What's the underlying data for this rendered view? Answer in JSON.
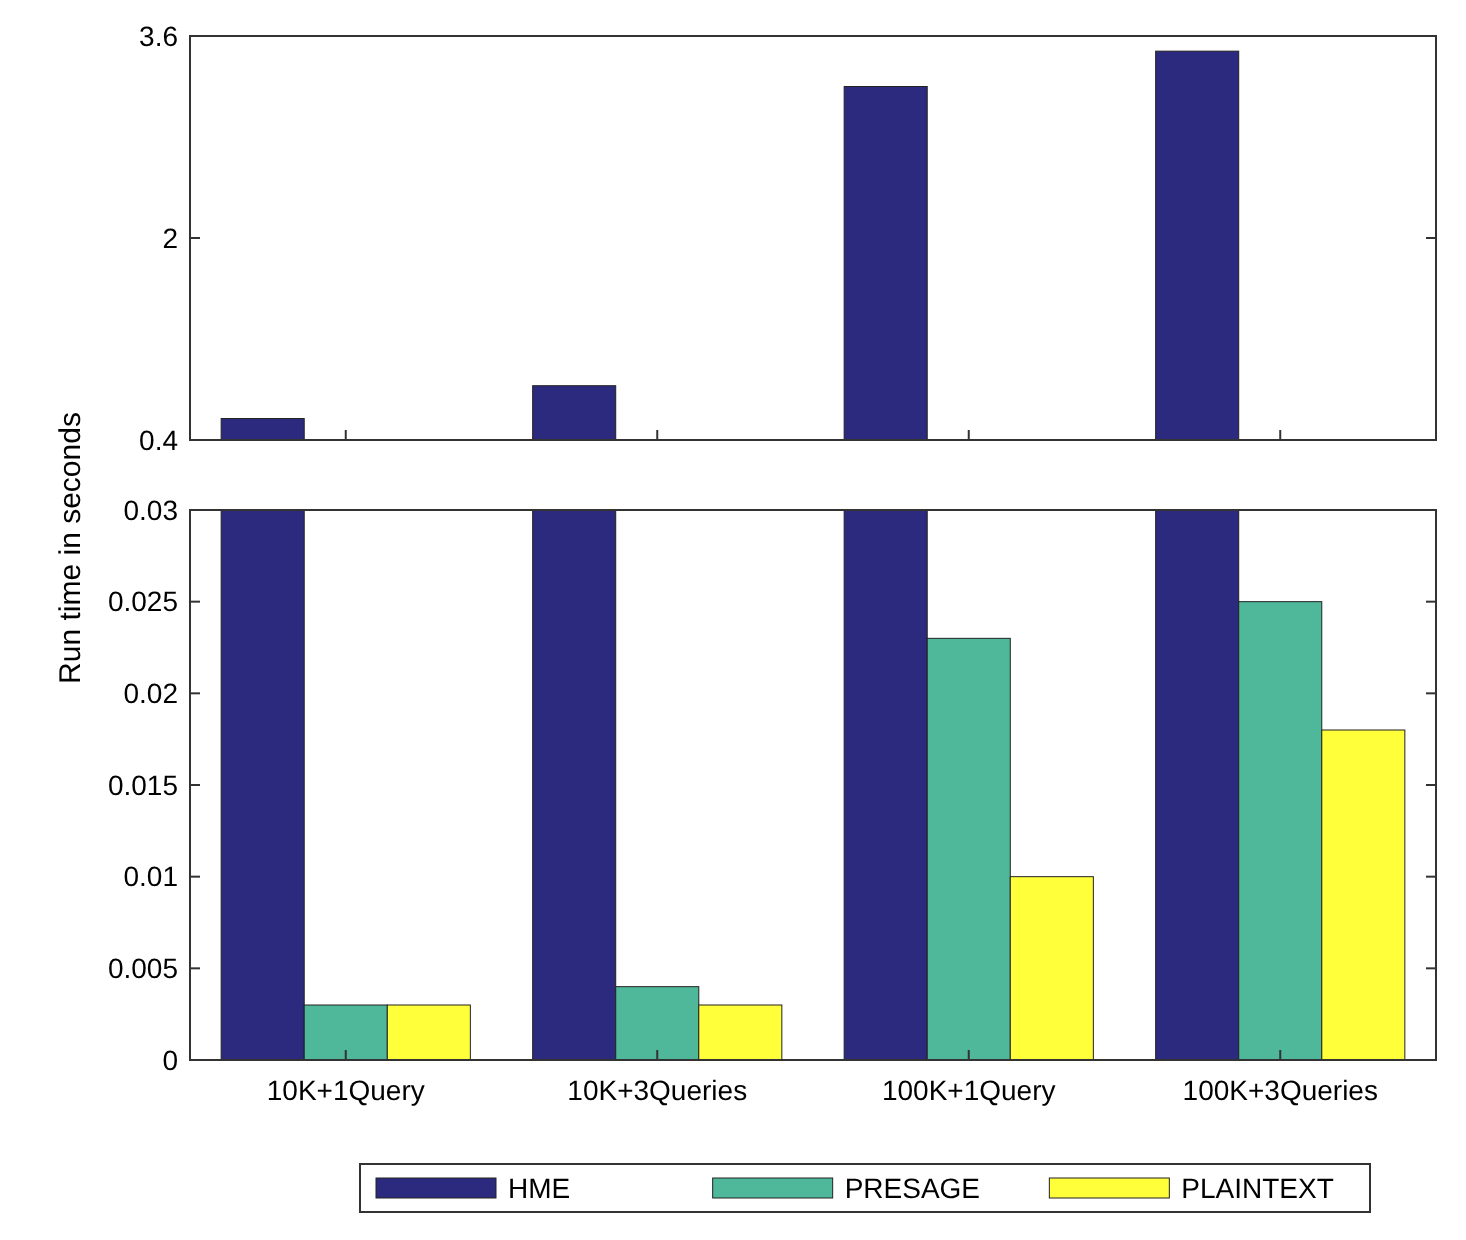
{
  "chart_data": [
    {
      "type": "bar",
      "categories": [
        null,
        null,
        null,
        null
      ],
      "ylim": [
        0.4,
        3.6
      ],
      "yticks": [
        0.4,
        2,
        3.6
      ],
      "tick_labels": "y",
      "legend": false,
      "series": [
        {
          "color": "#2b2a7e",
          "values": [
            0.57,
            0.83,
            3.2,
            3.48
          ]
        }
      ]
    },
    {
      "type": "bar",
      "categories": [
        "10K+1Query",
        "10K+3Queries",
        "100K+1Query",
        "100K+3Queries"
      ],
      "ylabel": "Run time in seconds",
      "ylim": [
        0,
        0.03
      ],
      "yticks": [
        0,
        0.005,
        0.01,
        0.015,
        0.02,
        0.025,
        0.03
      ],
      "legend": "bottom",
      "series": [
        {
          "name": "HME",
          "color": "#2b2a7e",
          "values": [
            0.03,
            0.03,
            0.03,
            0.03
          ]
        },
        {
          "name": "PRESAGE",
          "color": "#4fb89a",
          "values": [
            0.003,
            0.004,
            0.023,
            0.025
          ]
        },
        {
          "name": "PLAINTEXT",
          "color": "#ffff3a",
          "values": [
            0.003,
            0.003,
            0.01,
            0.018
          ]
        }
      ]
    }
  ]
}
